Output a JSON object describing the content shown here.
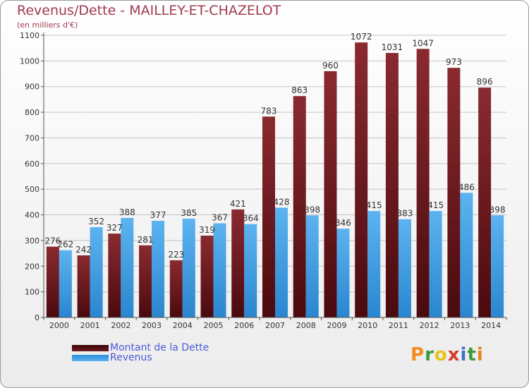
{
  "header": {
    "title": "Revenus/Dette - MAILLEY-ET-CHAZELOT",
    "subtitle": "(en milliers d'€)"
  },
  "legend": {
    "debt_label": "Montant de la Dette",
    "revenue_label": "Revenus"
  },
  "brand": {
    "letters": [
      "P",
      "r",
      "o",
      "x",
      "i",
      "t",
      "i"
    ],
    "colors": [
      "#f28c1c",
      "#3c9a3c",
      "#e8c21c",
      "#d33a2c",
      "#3a74c8",
      "#3c9a3c",
      "#e8851c"
    ]
  },
  "chart_data": {
    "type": "bar",
    "title": "Revenus/Dette - MAILLEY-ET-CHAZELOT",
    "ylabel": "(en milliers d'€)",
    "categories": [
      "2000",
      "2001",
      "2002",
      "2003",
      "2004",
      "2005",
      "2006",
      "2007",
      "2008",
      "2009",
      "2010",
      "2011",
      "2012",
      "2013",
      "2014"
    ],
    "series": [
      {
        "name": "Montant de la Dette",
        "color": "#7a1d23",
        "values": [
          276,
          242,
          327,
          281,
          223,
          319,
          421,
          783,
          863,
          960,
          1072,
          1031,
          1047,
          973,
          896
        ]
      },
      {
        "name": "Revenus",
        "color": "#45a5ea",
        "values": [
          262,
          352,
          388,
          377,
          385,
          367,
          364,
          428,
          398,
          346,
          415,
          383,
          415,
          486,
          398
        ]
      }
    ],
    "yticks": [
      "0",
      "100",
      "200",
      "300",
      "400",
      "500",
      "600",
      "700",
      "800",
      "900",
      "1000",
      "1100"
    ],
    "ylim": [
      0,
      1100
    ],
    "grid": true,
    "legend_position": "bottom-left"
  }
}
